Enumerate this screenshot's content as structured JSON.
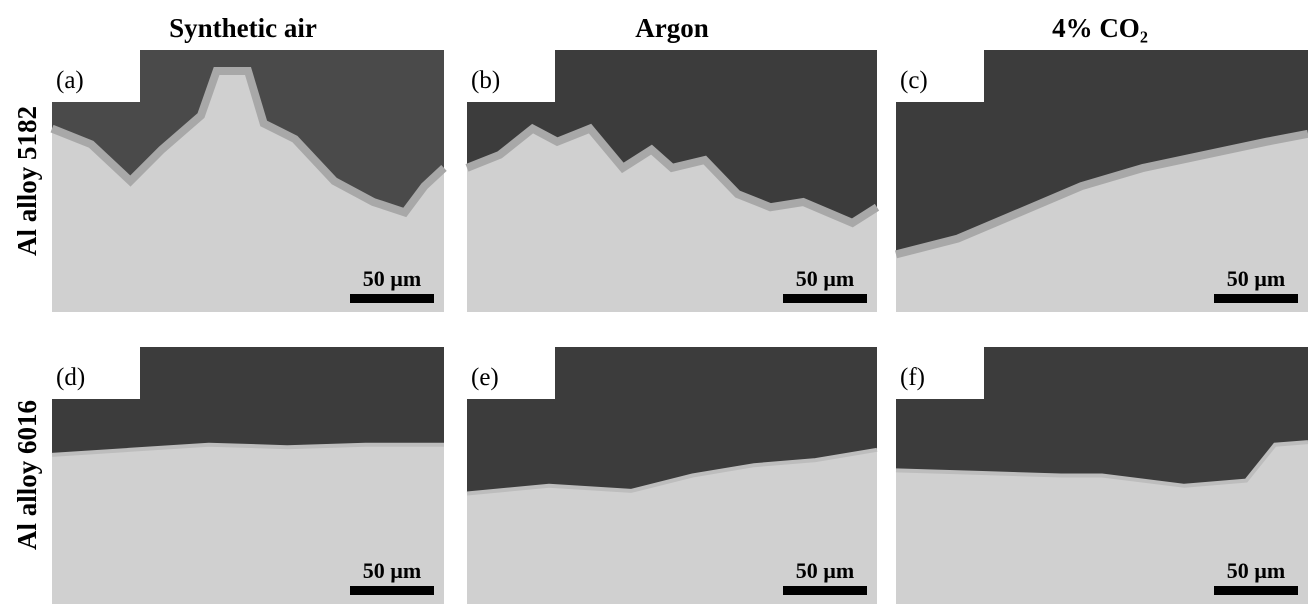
{
  "columns": [
    "Synthetic air",
    "Argon",
    "4% CO₂"
  ],
  "rows": [
    "Al alloy 5182",
    "Al alloy 6016"
  ],
  "panels": [
    {
      "label": "(a)",
      "scale_bar": "50 µm"
    },
    {
      "label": "(b)",
      "scale_bar": "50 µm"
    },
    {
      "label": "(c)",
      "scale_bar": "50 µm"
    },
    {
      "label": "(d)",
      "scale_bar": "50 µm"
    },
    {
      "label": "(e)",
      "scale_bar": "50 µm"
    },
    {
      "label": "(f)",
      "scale_bar": "50 µm"
    }
  ]
}
